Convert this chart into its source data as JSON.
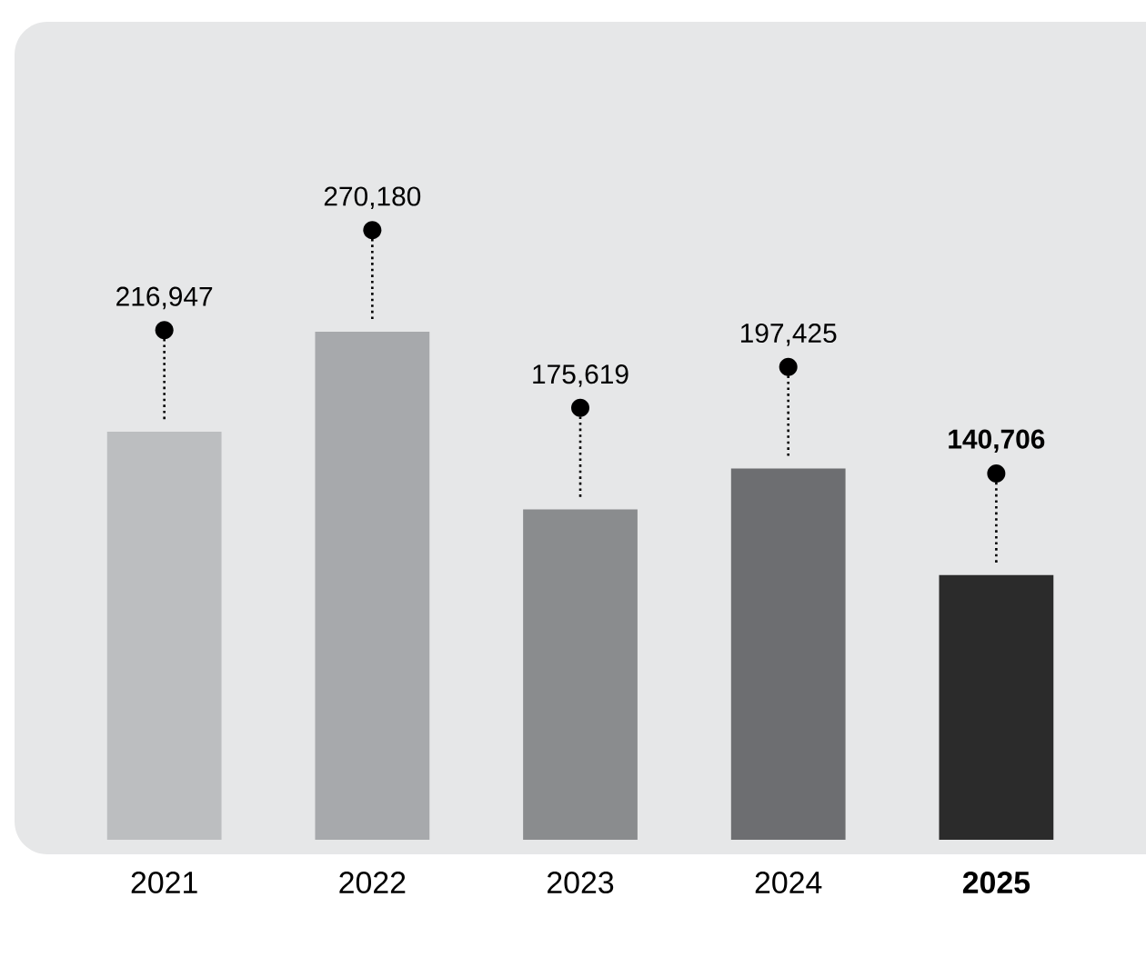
{
  "chart_data": {
    "type": "bar",
    "relative": false,
    "categories": [
      "2021",
      "2022",
      "2023",
      "2024",
      "**2025**"
    ],
    "values": [
      216947,
      270180,
      175619,
      197425,
      140706
    ],
    "colors": [
      "#bcbec0",
      "#a7a9ac",
      "#8a8c8e",
      "#6d6e71",
      "#2b2b2b"
    ],
    "value_labels": [
      "216,947",
      "270,180",
      "175,619",
      "197,425",
      "**140,706**"
    ]
  }
}
